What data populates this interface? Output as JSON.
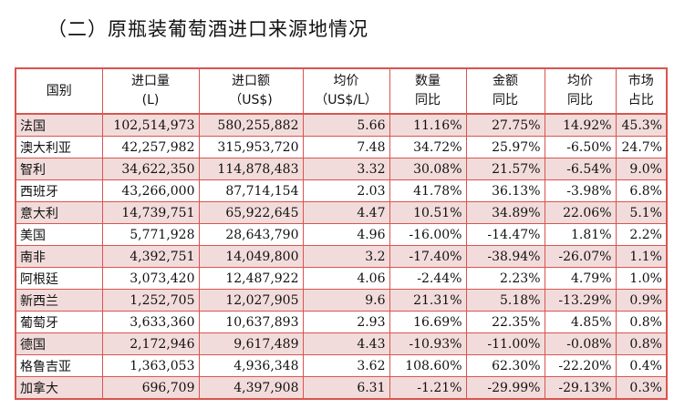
{
  "title": "（二）原瓶装葡萄酒进口来源地情况",
  "headers": [
    {
      "line1": "国别",
      "line2": ""
    },
    {
      "line1": "进口量",
      "line2": "(L)"
    },
    {
      "line1": "进口额",
      "line2": "（US$)"
    },
    {
      "line1": "均价",
      "line2": "（US$/L）"
    },
    {
      "line1": "数量",
      "line2": "同比"
    },
    {
      "line1": "金额",
      "line2": "同比"
    },
    {
      "line1": "均价",
      "line2": "同比"
    },
    {
      "line1": "市场",
      "line2": "占比"
    }
  ],
  "rows": [
    {
      "country": "法国",
      "volume": "102,514,973",
      "value": "580,255,882",
      "avg_price": "5.66",
      "volume_yoy": "11.16%",
      "value_yoy": "27.75%",
      "price_yoy": "14.92%",
      "share": "45.3%"
    },
    {
      "country": "澳大利亚",
      "volume": "42,257,982",
      "value": "315,953,720",
      "avg_price": "7.48",
      "volume_yoy": "34.72%",
      "value_yoy": "25.97%",
      "price_yoy": "-6.50%",
      "share": "24.7%"
    },
    {
      "country": "智利",
      "volume": "34,622,350",
      "value": "114,878,483",
      "avg_price": "3.32",
      "volume_yoy": "30.08%",
      "value_yoy": "21.57%",
      "price_yoy": "-6.54%",
      "share": "9.0%"
    },
    {
      "country": "西班牙",
      "volume": "43,266,000",
      "value": "87,714,154",
      "avg_price": "2.03",
      "volume_yoy": "41.78%",
      "value_yoy": "36.13%",
      "price_yoy": "-3.98%",
      "share": "6.8%"
    },
    {
      "country": "意大利",
      "volume": "14,739,751",
      "value": "65,922,645",
      "avg_price": "4.47",
      "volume_yoy": "10.51%",
      "value_yoy": "34.89%",
      "price_yoy": "22.06%",
      "share": "5.1%"
    },
    {
      "country": "美国",
      "volume": "5,771,928",
      "value": "28,643,790",
      "avg_price": "4.96",
      "volume_yoy": "-16.00%",
      "value_yoy": "-14.47%",
      "price_yoy": "1.81%",
      "share": "2.2%"
    },
    {
      "country": "南非",
      "volume": "4,392,751",
      "value": "14,049,800",
      "avg_price": "3.2",
      "volume_yoy": "-17.40%",
      "value_yoy": "-38.94%",
      "price_yoy": "-26.07%",
      "share": "1.1%"
    },
    {
      "country": "阿根廷",
      "volume": "3,073,420",
      "value": "12,487,922",
      "avg_price": "4.06",
      "volume_yoy": "-2.44%",
      "value_yoy": "2.23%",
      "price_yoy": "4.79%",
      "share": "1.0%"
    },
    {
      "country": "新西兰",
      "volume": "1,252,705",
      "value": "12,027,905",
      "avg_price": "9.6",
      "volume_yoy": "21.31%",
      "value_yoy": "5.18%",
      "price_yoy": "-13.29%",
      "share": "0.9%"
    },
    {
      "country": "葡萄牙",
      "volume": "3,633,360",
      "value": "10,637,893",
      "avg_price": "2.93",
      "volume_yoy": "16.69%",
      "value_yoy": "22.35%",
      "price_yoy": "4.85%",
      "share": "0.8%"
    },
    {
      "country": "德国",
      "volume": "2,172,946",
      "value": "9,617,489",
      "avg_price": "4.43",
      "volume_yoy": "-10.93%",
      "value_yoy": "-11.00%",
      "price_yoy": "-0.08%",
      "share": "0.8%"
    },
    {
      "country": "格鲁吉亚",
      "volume": "1,363,053",
      "value": "4,936,348",
      "avg_price": "3.62",
      "volume_yoy": "108.60%",
      "value_yoy": "62.30%",
      "price_yoy": "-22.20%",
      "share": "0.4%"
    },
    {
      "country": "加拿大",
      "volume": "696,709",
      "value": "4,397,908",
      "avg_price": "6.31",
      "volume_yoy": "-1.21%",
      "value_yoy": "-29.99%",
      "price_yoy": "-29.13%",
      "share": "0.3%"
    }
  ],
  "colors": {
    "border": "#d9544f",
    "shaded_row": "#f2dcdb",
    "plain_row": "#ffffff"
  }
}
